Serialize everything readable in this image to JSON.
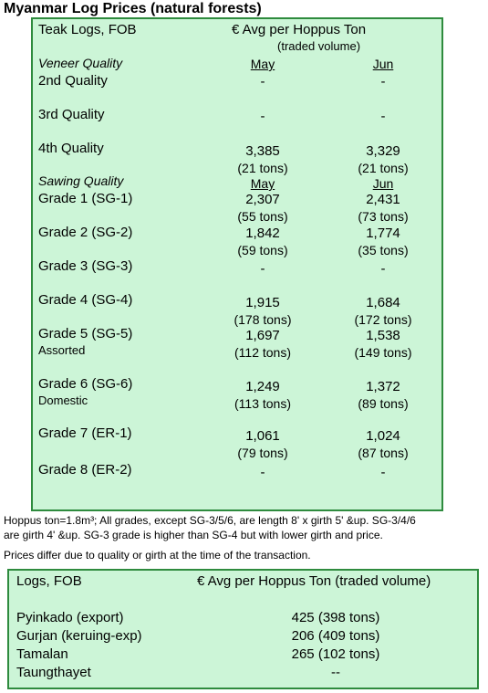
{
  "title": "Myanmar Log Prices (natural forests)",
  "teak": {
    "header_left": "Teak Logs, FOB",
    "header_right": "€ Avg per Hoppus Ton",
    "header_sub": "(traded volume)",
    "veneer_label": "Veneer Quality",
    "col_may": "May",
    "col_jun": "Jun",
    "sawing_label": "Sawing Quality",
    "rows": [
      {
        "label": "2nd Quality",
        "may": "-",
        "jun": "-"
      },
      {
        "label": "3rd Quality",
        "may": "-",
        "jun": "-"
      },
      {
        "label": "4th Quality",
        "may": "3,385",
        "may_t": "(21 tons)",
        "jun": "3,329",
        "jun_t": "(21 tons)"
      },
      {
        "label": "Grade 1 (SG-1)",
        "may": "2,307",
        "may_t": "(55 tons)",
        "jun": "2,431",
        "jun_t": "(73 tons)"
      },
      {
        "label": "Grade 2 (SG-2)",
        "may": "1,842",
        "may_t": "(59 tons)",
        "jun": "1,774",
        "jun_t": "(35 tons)"
      },
      {
        "label": "Grade 3 (SG-3)",
        "may": "-",
        "jun": "-"
      },
      {
        "label": "Grade 4 (SG-4)",
        "may": "1,915",
        "may_t": "(178 tons)",
        "jun": "1,684",
        "jun_t": "(172 tons)"
      },
      {
        "label": "Grade 5 (SG-5)",
        "sub": "Assorted",
        "may": "1,697",
        "may_t": "(112 tons)",
        "jun": "1,538",
        "jun_t": "(149 tons)"
      },
      {
        "label": "Grade 6 (SG-6)",
        "sub": "Domestic",
        "may": "1,249",
        "may_t": "(113 tons)",
        "jun": "1,372",
        "jun_t": "(89 tons)"
      },
      {
        "label": "Grade 7 (ER-1)",
        "may": "1,061",
        "may_t": "(79 tons)",
        "jun": "1,024",
        "jun_t": "(87 tons)"
      },
      {
        "label": "Grade 8 (ER-2)",
        "may": "-",
        "jun": "-"
      }
    ]
  },
  "notes": {
    "line1": "Hoppus ton=1.8m³; All grades, except SG-3/5/6, are length 8' x girth 5' &up. SG-3/4/6",
    "line2": "are girth 4' &up. SG-3 grade is higher than SG-4 but with lower girth and price.",
    "line3": "Prices differ due to quality or girth at the time of the transaction."
  },
  "logs": {
    "header_left": "Logs, FOB",
    "header_right": "€ Avg per Hoppus Ton (traded volume)",
    "rows": [
      {
        "label": "Pyinkado (export)",
        "value": "425 (398 tons)"
      },
      {
        "label": "Gurjan (keruing-exp)",
        "value": "206 (409 tons)"
      },
      {
        "label": "Tamalan",
        "value": "265 (102 tons)"
      },
      {
        "label": "Taungthayet",
        "value": "--"
      }
    ]
  }
}
